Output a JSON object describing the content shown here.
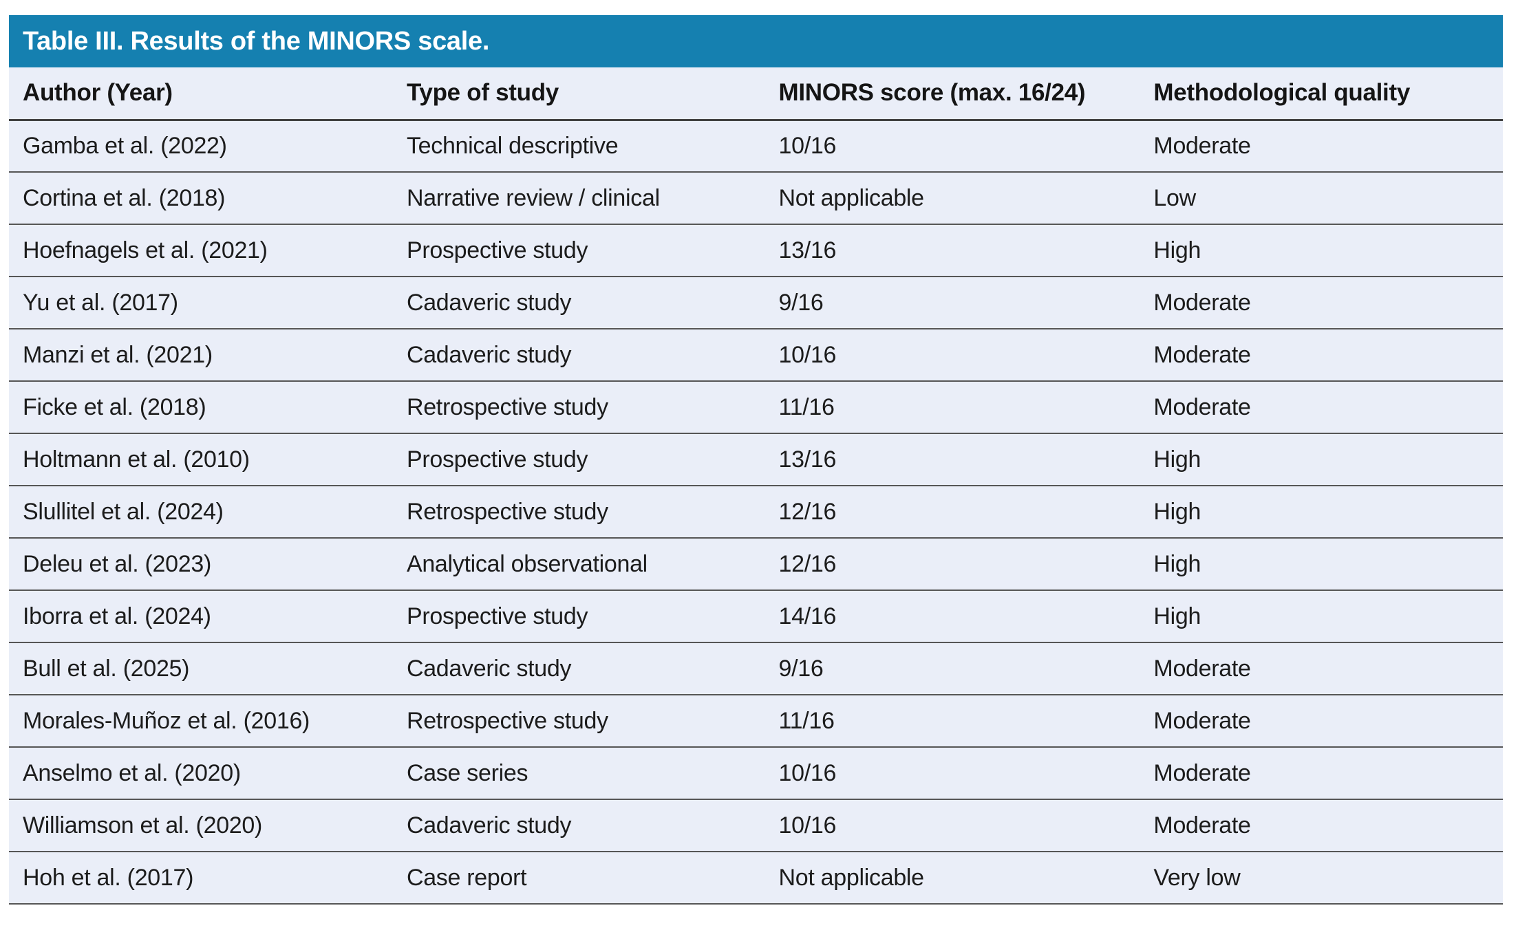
{
  "table": {
    "title": "Table III. Results of the MINORS scale.",
    "accent_color": "#1580b0",
    "row_background_color": "#eaeef8",
    "separator_color": "#565656",
    "columns": [
      "Author (Year)",
      "Type of study",
      "MINORS score (max. 16/24)",
      "Methodological quality"
    ],
    "rows": [
      {
        "author": "Gamba et al. (2022)",
        "type": "Technical descriptive",
        "score": "10/16",
        "quality": "Moderate"
      },
      {
        "author": "Cortina et al. (2018)",
        "type": "Narrative review / clinical",
        "score": "Not applicable",
        "quality": "Low"
      },
      {
        "author": "Hoefnagels et al. (2021)",
        "type": "Prospective study",
        "score": "13/16",
        "quality": "High"
      },
      {
        "author": "Yu et al. (2017)",
        "type": "Cadaveric study",
        "score": "9/16",
        "quality": "Moderate"
      },
      {
        "author": "Manzi et al. (2021)",
        "type": "Cadaveric study",
        "score": "10/16",
        "quality": "Moderate"
      },
      {
        "author": "Ficke et al. (2018)",
        "type": "Retrospective study",
        "score": "11/16",
        "quality": "Moderate"
      },
      {
        "author": "Holtmann et al. (2010)",
        "type": "Prospective study",
        "score": "13/16",
        "quality": "High"
      },
      {
        "author": "Slullitel et al. (2024)",
        "type": "Retrospective study",
        "score": "12/16",
        "quality": "High"
      },
      {
        "author": "Deleu et al. (2023)",
        "type": "Analytical observational",
        "score": "12/16",
        "quality": "High"
      },
      {
        "author": "Iborra et al. (2024)",
        "type": "Prospective study",
        "score": "14/16",
        "quality": "High"
      },
      {
        "author": "Bull et al. (2025)",
        "type": "Cadaveric study",
        "score": "9/16",
        "quality": "Moderate"
      },
      {
        "author": "Morales-Muñoz et al. (2016)",
        "type": "Retrospective study",
        "score": "11/16",
        "quality": "Moderate"
      },
      {
        "author": "Anselmo et al. (2020)",
        "type": "Case series",
        "score": "10/16",
        "quality": "Moderate"
      },
      {
        "author": "Williamson et al. (2020)",
        "type": "Cadaveric study",
        "score": "10/16",
        "quality": "Moderate"
      },
      {
        "author": "Hoh et al. (2017)",
        "type": "Case report",
        "score": "Not applicable",
        "quality": "Very low"
      }
    ]
  }
}
